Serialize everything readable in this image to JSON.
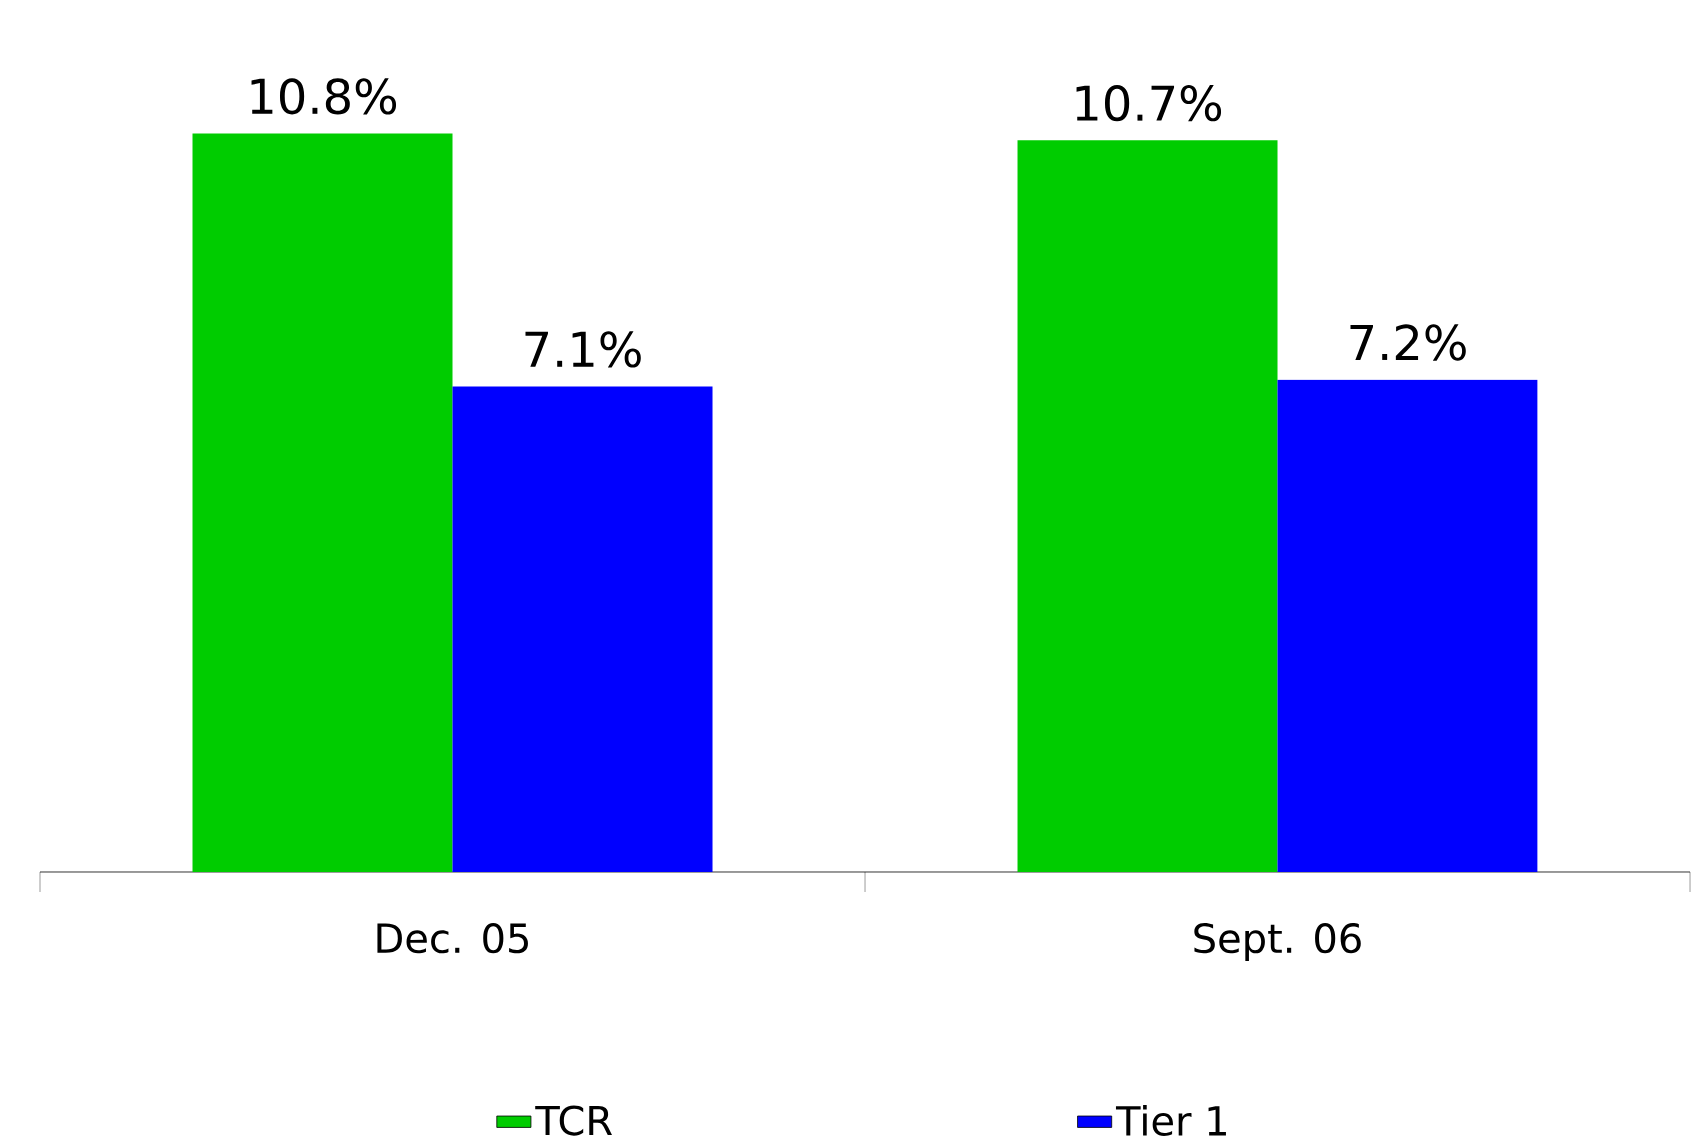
{
  "chart_data": {
    "type": "bar",
    "categories": [
      "Dec. 05",
      "Sept. 06"
    ],
    "legend": "bottom",
    "series": [
      {
        "name": "TCR",
        "color": "#00cc00",
        "values": [
          10.8,
          10.7
        ],
        "value_labels": [
          "10.8%",
          "10.7%"
        ]
      },
      {
        "name": "Tier 1",
        "color": "#0000ff",
        "values": [
          7.1,
          7.2
        ],
        "value_labels": [
          "7.1%",
          "7.2%"
        ]
      }
    ]
  }
}
